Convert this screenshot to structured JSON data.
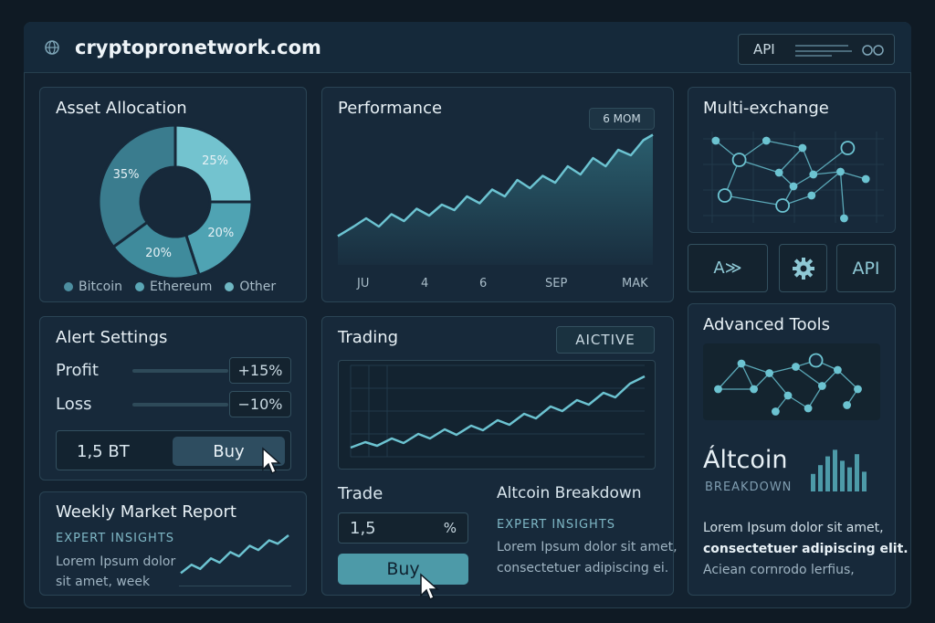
{
  "header": {
    "domain": "cryptopronetwork.com",
    "badge": "API"
  },
  "asset_allocation": {
    "title": "Asset Allocation",
    "slices": [
      {
        "label": "25%",
        "value": 25,
        "color": "#73c3cf"
      },
      {
        "label": "20%",
        "value": 20,
        "color": "#4fa3b3"
      },
      {
        "label": "20%",
        "value": 20,
        "color": "#3f8b9c"
      },
      {
        "label": "35%",
        "value": 35,
        "color": "#3a7c8e"
      }
    ],
    "legend": [
      {
        "name": "Bitcoin",
        "color": "#4d8ea0"
      },
      {
        "name": "Ethereum",
        "color": "#5aa6b5"
      },
      {
        "name": "Other",
        "color": "#6fb7c3"
      }
    ]
  },
  "performance": {
    "title": "Performance",
    "period": "6 MOM",
    "x_labels": [
      "JU",
      "4",
      "6",
      "SEP",
      "MAK"
    ]
  },
  "multi_exchange": {
    "title": "Multi-exchange"
  },
  "tool_buttons": {
    "left": "A≫",
    "right": "API"
  },
  "alert_settings": {
    "title": "Alert Settings",
    "profit_label": "Profit",
    "profit_value": "+15%",
    "loss_label": "Loss",
    "loss_value": "−10%",
    "amount": "1,5 BT",
    "buy": "Buy"
  },
  "trading": {
    "title": "Trading",
    "status": "AICTIVE",
    "trade_label": "Trade",
    "trade_amount": "1,5",
    "trade_unit": "%",
    "buy": "Buy",
    "breakdown_title": "Altcoin Breakdown",
    "breakdown_sub": "EXPERT INSIGHTS",
    "breakdown_text1": "Lorem Ipsum dolor sit amet,",
    "breakdown_text2": "consectetuer adipiscing ei."
  },
  "advanced_tools": {
    "title": "Advanced Tools",
    "altcoin": "Áltcoin",
    "breakdown": "BREAKDOWN",
    "text1": "Lorem Ipsum dolor sit amet,",
    "text2": "consectetuer adipiscing elit.",
    "text3": "Aciean cornrodo lerfius,"
  },
  "weekly_report": {
    "title": "Weekly Market Report",
    "sub": "EXPERT INSIGHTS",
    "text1": "Lorem Ipsum dolor",
    "text2": "sit amet, week"
  }
}
